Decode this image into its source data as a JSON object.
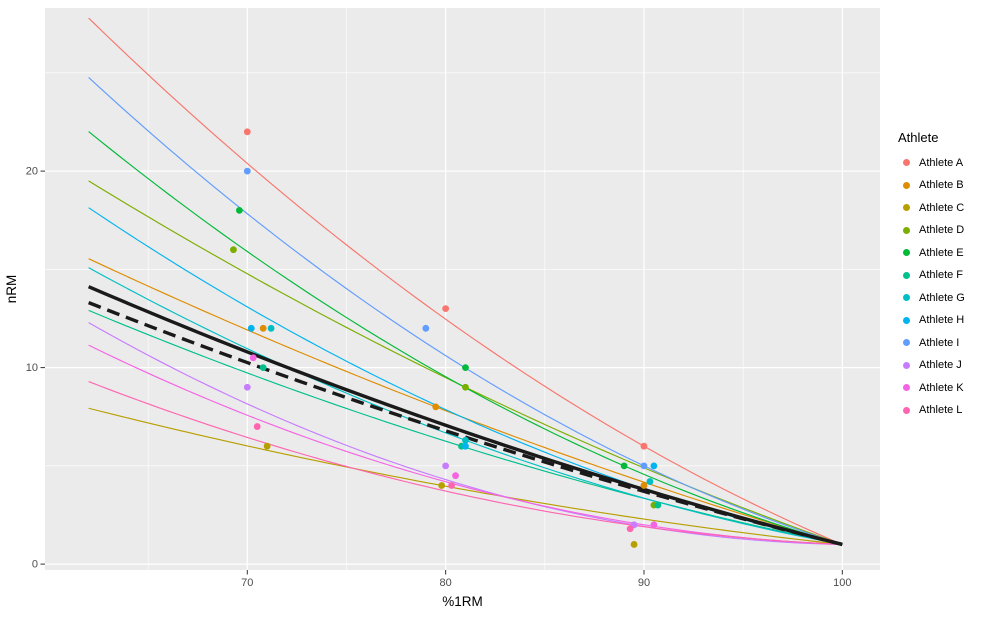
{
  "figure": {
    "background": "#FFFFFF",
    "panel_background": "#EBEBEB",
    "grid_major_color": "#FFFFFF",
    "grid_minor_color": "#FFFFFF",
    "tick_label_color": "#4D4D4D",
    "axis_title_color": "#000000",
    "tick_mark_color": "#333333"
  },
  "chart_data": {
    "type": "scatter",
    "title": "",
    "xlabel": "%1RM",
    "ylabel": "nRM",
    "x_ticks": [
      70,
      80,
      90,
      100
    ],
    "y_ticks": [
      0,
      10,
      20
    ],
    "x_minor_ticks": [
      65,
      75,
      85,
      95
    ],
    "y_minor_ticks": [
      5,
      15,
      25
    ],
    "x_domain": [
      59.8,
      101.9
    ],
    "y_domain": [
      -0.3,
      28.3
    ],
    "curve_x_start": 62.0,
    "curve_x_end": 100,
    "curve_model": "nRM = 1 + a*(100-x) + b*(100-x)^2 ; all curves converge at (100, 1)",
    "legend": {
      "title": "Athlete"
    },
    "series": [
      {
        "name": "Athlete A",
        "color": "#F8766D",
        "curve": {
          "a": 0.4268,
          "b": 0.00732
        },
        "points": [
          [
            70,
            22
          ],
          [
            80,
            13
          ],
          [
            90,
            6
          ]
        ]
      },
      {
        "name": "Athlete B",
        "color": "#DE8C00",
        "curve": {
          "a": 0.2934,
          "b": 0.00235
        },
        "points": [
          [
            70.8,
            12
          ],
          [
            79.5,
            8
          ],
          [
            90,
            4
          ]
        ]
      },
      {
        "name": "Athlete C",
        "color": "#B79F00",
        "curve": {
          "a": 0.1102,
          "b": 0.0019
        },
        "points": [
          [
            71,
            6
          ],
          [
            79.8,
            4
          ],
          [
            89.5,
            1
          ]
        ]
      },
      {
        "name": "Athlete D",
        "color": "#7CAE00",
        "curve": {
          "a": 0.355,
          "b": 0.00347
        },
        "points": [
          [
            69.3,
            16
          ],
          [
            81,
            9
          ],
          [
            90.5,
            3
          ]
        ]
      },
      {
        "name": "Athlete E",
        "color": "#00BA38",
        "curve": {
          "a": 0.2866,
          "b": 0.00701
        },
        "points": [
          [
            69.6,
            18
          ],
          [
            81,
            10
          ],
          [
            89,
            5
          ]
        ]
      },
      {
        "name": "Athlete F",
        "color": "#00C08B",
        "curve": {
          "a": 0.2063,
          "b": 0.00282
        },
        "points": [
          [
            70.8,
            10
          ],
          [
            80.8,
            6
          ],
          [
            90.7,
            3
          ]
        ]
      },
      {
        "name": "Athlete G",
        "color": "#00BFC4",
        "curve": {
          "a": 0.1875,
          "b": 0.00482
        },
        "points": [
          [
            71.2,
            12
          ],
          [
            81,
            6.3
          ],
          [
            90.3,
            4.2
          ]
        ]
      },
      {
        "name": "Athlete H",
        "color": "#00B4F0",
        "curve": {
          "a": 0.223,
          "b": 0.006
        },
        "points": [
          [
            70.2,
            12
          ],
          [
            81,
            6
          ],
          [
            90.5,
            5
          ]
        ]
      },
      {
        "name": "Athlete I",
        "color": "#619CFF",
        "curve": {
          "a": 0.3195,
          "b": 0.00805
        },
        "points": [
          [
            70,
            20
          ],
          [
            79,
            12
          ],
          [
            90,
            5
          ]
        ]
      },
      {
        "name": "Athlete J",
        "color": "#C77CFF",
        "curve": {
          "a": 0.0182,
          "b": 0.00734
        },
        "points": [
          [
            70,
            9
          ],
          [
            80,
            5
          ],
          [
            89.5,
            2
          ]
        ]
      },
      {
        "name": "Athlete K",
        "color": "#F564E3",
        "curve": {
          "a": 0.0404,
          "b": 0.00596
        },
        "points": [
          [
            70.3,
            10.5
          ],
          [
            80.5,
            4.5
          ],
          [
            90.5,
            2
          ]
        ]
      },
      {
        "name": "Athlete L",
        "color": "#FF64B0",
        "curve": {
          "a": 0.0445,
          "b": 0.00457
        },
        "points": [
          [
            70.5,
            7
          ],
          [
            80.3,
            4
          ],
          [
            89.3,
            1.8
          ]
        ]
      }
    ],
    "reference_lines": [
      {
        "id": "overall-solid-line",
        "style": "solid",
        "color": "#1A1A1A",
        "width": 3.4,
        "curve": {
          "a": 0.2567,
          "b": 0.00233
        }
      },
      {
        "id": "overall-dashed-line",
        "style": "dashed",
        "color": "#1A1A1A",
        "width": 3.4,
        "dash": "13 7",
        "curve": {
          "a": 0.2509,
          "b": 0.00192
        }
      }
    ]
  }
}
